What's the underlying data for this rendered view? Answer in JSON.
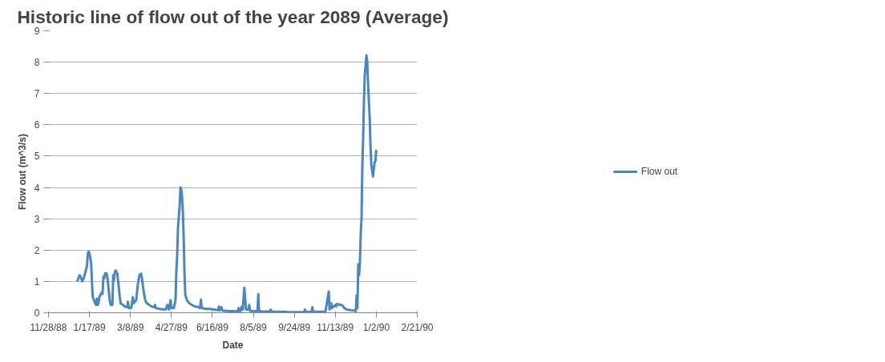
{
  "chart_data": {
    "type": "line",
    "title": "Historic line of flow out of the year 2089 (Average)",
    "xlabel": "Date",
    "ylabel": "Flow out (m^3/s)",
    "xlim": [
      "1988-11-28",
      "1990-02-21"
    ],
    "xticks": [
      {
        "value": "1988-11-28",
        "label": "11/28/88"
      },
      {
        "value": "1989-01-17",
        "label": "1/17/89"
      },
      {
        "value": "1989-03-08",
        "label": "3/8/89"
      },
      {
        "value": "1989-04-27",
        "label": "4/27/89"
      },
      {
        "value": "1989-06-16",
        "label": "6/16/89"
      },
      {
        "value": "1989-08-05",
        "label": "8/5/89"
      },
      {
        "value": "1989-09-24",
        "label": "9/24/89"
      },
      {
        "value": "1989-11-13",
        "label": "11/13/89"
      },
      {
        "value": "1990-01-02",
        "label": "1/2/90"
      },
      {
        "value": "1990-02-21",
        "label": "2/21/90"
      }
    ],
    "ylim": [
      0,
      9
    ],
    "yticks": [
      0,
      1,
      2,
      3,
      4,
      5,
      6,
      7,
      8,
      9
    ],
    "grid": "y",
    "legend": "right",
    "marker": "none",
    "line_style": "solid",
    "x": [
      "1989-01-02",
      "1989-01-05",
      "1989-01-07",
      "1989-01-08",
      "1989-01-10",
      "1989-01-12",
      "1989-01-14",
      "1989-01-15",
      "1989-01-16",
      "1989-01-17",
      "1989-01-19",
      "1989-01-20",
      "1989-01-21",
      "1989-01-24",
      "1989-01-25",
      "1989-01-26",
      "1989-01-27",
      "1989-01-28",
      "1989-01-29",
      "1989-01-31",
      "1989-02-01",
      "1989-02-02",
      "1989-02-03",
      "1989-02-04",
      "1989-02-05",
      "1989-02-07",
      "1989-02-08",
      "1989-02-10",
      "1989-02-11",
      "1989-02-12",
      "1989-02-14",
      "1989-02-15",
      "1989-02-16",
      "1989-02-17",
      "1989-02-18",
      "1989-02-20",
      "1989-02-21",
      "1989-02-23",
      "1989-02-24",
      "1989-02-27",
      "1989-03-01",
      "1989-03-04",
      "1989-03-05",
      "1989-03-06",
      "1989-03-09",
      "1989-03-11",
      "1989-03-12",
      "1989-03-13",
      "1989-03-15",
      "1989-03-17",
      "1989-03-19",
      "1989-03-21",
      "1989-03-22",
      "1989-03-24",
      "1989-03-26",
      "1989-03-28",
      "1989-03-31",
      "1989-04-03",
      "1989-04-06",
      "1989-04-07",
      "1989-04-08",
      "1989-04-13",
      "1989-04-18",
      "1989-04-20",
      "1989-04-22",
      "1989-04-24",
      "1989-04-26",
      "1989-04-27",
      "1989-04-30",
      "1989-05-02",
      "1989-05-03",
      "1989-05-04",
      "1989-05-05",
      "1989-05-07",
      "1989-05-08",
      "1989-05-09",
      "1989-05-10",
      "1989-05-11",
      "1989-05-12",
      "1989-05-13",
      "1989-05-14",
      "1989-05-16",
      "1989-05-19",
      "1989-05-22",
      "1989-05-24",
      "1989-05-26",
      "1989-05-30",
      "1989-06-01",
      "1989-06-02",
      "1989-06-03",
      "1989-06-08",
      "1989-06-13",
      "1989-06-18",
      "1989-06-23",
      "1989-06-24",
      "1989-06-25",
      "1989-06-27",
      "1989-06-28",
      "1989-07-03",
      "1989-07-08",
      "1989-07-13",
      "1989-07-17",
      "1989-07-18",
      "1989-07-20",
      "1989-07-22",
      "1989-07-23",
      "1989-07-25",
      "1989-07-27",
      "1989-07-30",
      "1989-07-31",
      "1989-08-01",
      "1989-08-07",
      "1989-08-10",
      "1989-08-11",
      "1989-08-12",
      "1989-08-17",
      "1989-08-23",
      "1989-08-25",
      "1989-08-26",
      "1989-08-28",
      "1989-09-07",
      "1989-09-12",
      "1989-09-17",
      "1989-09-22",
      "1989-10-06",
      "1989-10-07",
      "1989-10-08",
      "1989-10-15",
      "1989-10-16",
      "1989-10-17",
      "1989-10-27",
      "1989-10-31",
      "1989-11-01",
      "1989-11-05",
      "1989-11-06",
      "1989-11-08",
      "1989-11-09",
      "1989-11-11",
      "1989-11-13",
      "1989-11-14",
      "1989-11-15",
      "1989-11-19",
      "1989-11-21",
      "1989-11-24",
      "1989-11-27",
      "1989-12-02",
      "1989-12-07",
      "1989-12-08",
      "1989-12-09",
      "1989-12-10",
      "1989-12-11",
      "1989-12-12",
      "1989-12-13",
      "1989-12-14",
      "1989-12-15",
      "1989-12-16",
      "1989-12-17",
      "1989-12-18",
      "1989-12-19",
      "1989-12-20",
      "1989-12-21",
      "1989-12-22",
      "1989-12-23",
      "1989-12-25",
      "1989-12-26",
      "1989-12-27",
      "1989-12-29",
      "1989-12-30",
      "1989-12-31",
      "1990-01-01",
      "1990-01-02"
    ],
    "series": [
      {
        "name": "Flow out",
        "color": "#4a86c3",
        "values": [
          1.0,
          1.2,
          1.1,
          1.0,
          1.1,
          1.3,
          1.5,
          1.9,
          1.95,
          1.9,
          1.6,
          1.0,
          0.5,
          0.3,
          0.25,
          0.45,
          0.25,
          0.3,
          0.5,
          0.6,
          0.65,
          0.6,
          1.15,
          1.1,
          1.25,
          1.25,
          1.1,
          0.6,
          0.35,
          0.25,
          0.25,
          1.2,
          1.05,
          1.3,
          1.35,
          1.25,
          1.0,
          0.5,
          0.3,
          0.25,
          0.2,
          0.18,
          0.35,
          0.15,
          0.15,
          0.5,
          0.3,
          0.35,
          0.4,
          0.9,
          1.2,
          1.25,
          1.1,
          0.7,
          0.4,
          0.3,
          0.25,
          0.2,
          0.18,
          0.25,
          0.15,
          0.12,
          0.1,
          0.1,
          0.25,
          0.1,
          0.4,
          0.15,
          0.15,
          0.4,
          1.3,
          1.8,
          2.7,
          3.4,
          4.0,
          3.95,
          3.7,
          3.2,
          2.4,
          1.2,
          0.55,
          0.4,
          0.3,
          0.25,
          0.22,
          0.2,
          0.18,
          0.15,
          0.42,
          0.15,
          0.12,
          0.12,
          0.1,
          0.08,
          0.2,
          0.08,
          0.18,
          0.07,
          0.06,
          0.05,
          0.05,
          0.04,
          0.15,
          0.04,
          0.2,
          0.1,
          0.8,
          0.1,
          0.1,
          0.25,
          0.06,
          0.05,
          0.05,
          0.6,
          0.05,
          0.04,
          0.04,
          0.04,
          0.1,
          0.03,
          0.03,
          0.03,
          0.02,
          0.02,
          0.02,
          0.1,
          0.02,
          0.03,
          0.18,
          0.03,
          0.03,
          0.03,
          0.04,
          0.68,
          0.1,
          0.3,
          0.15,
          0.2,
          0.25,
          0.2,
          0.28,
          0.25,
          0.25,
          0.15,
          0.1,
          0.08,
          0.07,
          0.05,
          0.55,
          0.15,
          1.55,
          1.2,
          1.6,
          2.5,
          3.0,
          4.7,
          5.6,
          6.8,
          7.6,
          7.9,
          8.22,
          8.0,
          7.3,
          6.2,
          5.3,
          4.7,
          4.35,
          4.6,
          4.8,
          4.85,
          5.2
        ]
      }
    ]
  }
}
